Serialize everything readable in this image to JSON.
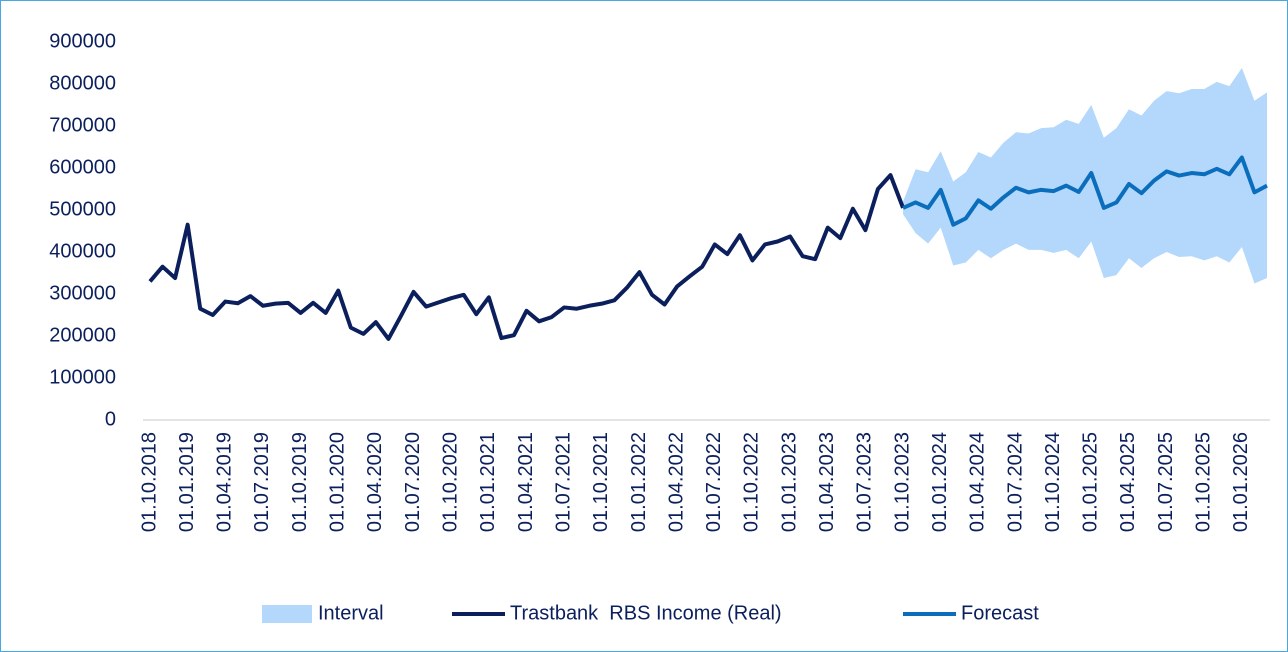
{
  "chart_data": {
    "type": "line",
    "categories": [
      "01.10.2018",
      null,
      null,
      "01.01.2019",
      null,
      null,
      "01.04.2019",
      null,
      null,
      "01.07.2019",
      null,
      null,
      "01.10.2019",
      null,
      null,
      "01.01.2020",
      null,
      null,
      "01.04.2020",
      null,
      null,
      "01.07.2020",
      null,
      null,
      "01.10.2020",
      null,
      null,
      "01.01.2021",
      null,
      null,
      "01.04.2021",
      null,
      null,
      "01.07.2021",
      null,
      null,
      "01.10.2021",
      null,
      null,
      "01.01.2022",
      null,
      null,
      "01.04.2022",
      null,
      null,
      "01.07.2022",
      null,
      null,
      "01.10.2022",
      null,
      null,
      "01.01.2023",
      null,
      null,
      "01.04.2023",
      null,
      null,
      "01.07.2023",
      null,
      null,
      "01.10.2023",
      null,
      null,
      "01.01.2024",
      null,
      null,
      "01.04.2024",
      null,
      null,
      "01.07.2024",
      null,
      null,
      "01.10.2024",
      null,
      null,
      "01.01.2025",
      null,
      null,
      "01.04.2025",
      null,
      null,
      "01.07.2025",
      null,
      null,
      "01.10.2025",
      null,
      null,
      "01.01.2026",
      null,
      null
    ],
    "series": [
      {
        "name": "Interval",
        "type": "area",
        "color": "#b4d8fb",
        "upper": [
          null,
          null,
          null,
          null,
          null,
          null,
          null,
          null,
          null,
          null,
          null,
          null,
          null,
          null,
          null,
          null,
          null,
          null,
          null,
          null,
          null,
          null,
          null,
          null,
          null,
          null,
          null,
          null,
          null,
          null,
          null,
          null,
          null,
          null,
          null,
          null,
          null,
          null,
          null,
          null,
          null,
          null,
          null,
          null,
          null,
          null,
          null,
          null,
          null,
          null,
          null,
          null,
          null,
          null,
          null,
          null,
          null,
          null,
          null,
          null,
          520000,
          597000,
          590000,
          640000,
          568000,
          590000,
          638000,
          625000,
          660000,
          685000,
          682000,
          695000,
          697000,
          715000,
          705000,
          750000,
          672000,
          695000,
          740000,
          725000,
          760000,
          783000,
          778000,
          788000,
          788000,
          805000,
          795000,
          838000,
          760000,
          780000
        ],
        "lower": [
          null,
          null,
          null,
          null,
          null,
          null,
          null,
          null,
          null,
          null,
          null,
          null,
          null,
          null,
          null,
          null,
          null,
          null,
          null,
          null,
          null,
          null,
          null,
          null,
          null,
          null,
          null,
          null,
          null,
          null,
          null,
          null,
          null,
          null,
          null,
          null,
          null,
          null,
          null,
          null,
          null,
          null,
          null,
          null,
          null,
          null,
          null,
          null,
          null,
          null,
          null,
          null,
          null,
          null,
          null,
          null,
          null,
          null,
          null,
          null,
          490000,
          445000,
          420000,
          458000,
          368000,
          375000,
          405000,
          385000,
          405000,
          420000,
          405000,
          405000,
          398000,
          405000,
          385000,
          425000,
          338000,
          345000,
          385000,
          362000,
          385000,
          400000,
          388000,
          390000,
          380000,
          390000,
          375000,
          412000,
          325000,
          338000
        ]
      },
      {
        "name": "Trastbank  RBS Income (Real)",
        "type": "line",
        "color": "#0b1f5c",
        "values": [
          330000,
          365000,
          338000,
          465000,
          265000,
          250000,
          282000,
          278000,
          295000,
          272000,
          277000,
          279000,
          255000,
          279000,
          255000,
          308000,
          220000,
          205000,
          233000,
          193000,
          248000,
          305000,
          270000,
          280000,
          290000,
          298000,
          252000,
          292000,
          195000,
          202000,
          260000,
          235000,
          245000,
          268000,
          265000,
          272000,
          277000,
          285000,
          315000,
          352000,
          298000,
          275000,
          318000,
          342000,
          365000,
          418000,
          395000,
          440000,
          380000,
          418000,
          425000,
          437000,
          390000,
          383000,
          458000,
          433000,
          503000,
          452000,
          550000,
          583000,
          505000,
          null,
          null,
          null,
          null,
          null,
          null,
          null,
          null,
          null,
          null,
          null,
          null,
          null,
          null,
          null,
          null,
          null,
          null,
          null,
          null,
          null,
          null,
          null,
          null,
          null,
          null,
          null,
          null,
          null
        ]
      },
      {
        "name": "Forecast",
        "type": "line",
        "color": "#0a6ebd",
        "values": [
          null,
          null,
          null,
          null,
          null,
          null,
          null,
          null,
          null,
          null,
          null,
          null,
          null,
          null,
          null,
          null,
          null,
          null,
          null,
          null,
          null,
          null,
          null,
          null,
          null,
          null,
          null,
          null,
          null,
          null,
          null,
          null,
          null,
          null,
          null,
          null,
          null,
          null,
          null,
          null,
          null,
          null,
          null,
          null,
          null,
          null,
          null,
          null,
          null,
          null,
          null,
          null,
          null,
          null,
          null,
          null,
          null,
          null,
          null,
          null,
          505000,
          518000,
          505000,
          548000,
          465000,
          480000,
          523000,
          503000,
          530000,
          553000,
          542000,
          548000,
          545000,
          558000,
          543000,
          588000,
          505000,
          518000,
          562000,
          540000,
          570000,
          592000,
          582000,
          588000,
          585000,
          598000,
          585000,
          625000,
          542000,
          558000
        ]
      }
    ],
    "ylim": [
      0,
      900000
    ],
    "yticks": [
      0,
      100000,
      200000,
      300000,
      400000,
      500000,
      600000,
      700000,
      800000,
      900000
    ],
    "grid": false,
    "legend": "bottom"
  }
}
